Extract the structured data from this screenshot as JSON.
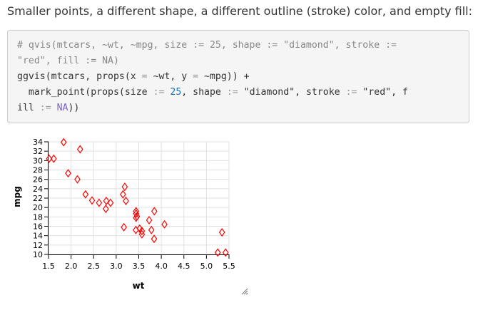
{
  "intro": "Smaller points, a different shape, a different outline (stroke) color, and empty fill:",
  "code": {
    "comment_1": "# qvis(mtcars, ~wt, ~mpg, size := 25, shape := \"diamond\", stroke :=",
    "comment_2": "\"red\", fill := NA)",
    "line3_a": "ggvis(mtcars, props(x ",
    "line3_eq1": "=",
    "line3_b": " ~wt, y ",
    "line3_eq2": "=",
    "line3_c": " ~mpg)) +",
    "line4_a": "  mark_point(props(size ",
    "line4_op1": ":=",
    "line4_num": " 25",
    "line4_b": ", shape ",
    "line4_op2": ":=",
    "line4_str1": " \"diamond\"",
    "line4_c": ", stroke ",
    "line4_op3": ":=",
    "line4_str2": " \"red\"",
    "line4_d": ", f",
    "line5_a": "ill ",
    "line5_op": ":=",
    "line5_na": " NA",
    "line5_b": "))"
  },
  "chart_data": {
    "type": "scatter",
    "xlabel": "wt",
    "ylabel": "mpg",
    "xlim": [
      1.5,
      5.5
    ],
    "ylim": [
      10,
      34
    ],
    "xticks": [
      "1.5",
      "2.0",
      "2.5",
      "3.0",
      "3.5",
      "4.0",
      "4.5",
      "5.0",
      "5.5"
    ],
    "yticks": [
      "10",
      "12",
      "14",
      "16",
      "18",
      "20",
      "22",
      "24",
      "26",
      "28",
      "30",
      "32",
      "34"
    ],
    "grid": true,
    "marker": {
      "shape": "diamond",
      "stroke": "#ff0000",
      "fill": "none"
    },
    "points": [
      [
        2.62,
        21.0
      ],
      [
        2.875,
        21.0
      ],
      [
        2.32,
        22.8
      ],
      [
        3.215,
        21.4
      ],
      [
        3.44,
        18.7
      ],
      [
        3.46,
        18.1
      ],
      [
        3.57,
        14.3
      ],
      [
        3.19,
        24.4
      ],
      [
        3.15,
        22.8
      ],
      [
        3.44,
        19.2
      ],
      [
        3.44,
        17.8
      ],
      [
        4.07,
        16.4
      ],
      [
        3.73,
        17.3
      ],
      [
        3.78,
        15.2
      ],
      [
        5.25,
        10.4
      ],
      [
        5.424,
        10.4
      ],
      [
        5.345,
        14.7
      ],
      [
        2.2,
        32.4
      ],
      [
        1.615,
        30.4
      ],
      [
        1.835,
        33.9
      ],
      [
        2.465,
        21.5
      ],
      [
        3.52,
        15.5
      ],
      [
        3.435,
        15.2
      ],
      [
        3.84,
        13.3
      ],
      [
        3.845,
        19.2
      ],
      [
        1.935,
        27.3
      ],
      [
        2.14,
        26.0
      ],
      [
        1.513,
        30.4
      ],
      [
        3.17,
        15.8
      ],
      [
        2.77,
        19.7
      ],
      [
        3.57,
        15.0
      ],
      [
        2.78,
        21.4
      ]
    ]
  }
}
